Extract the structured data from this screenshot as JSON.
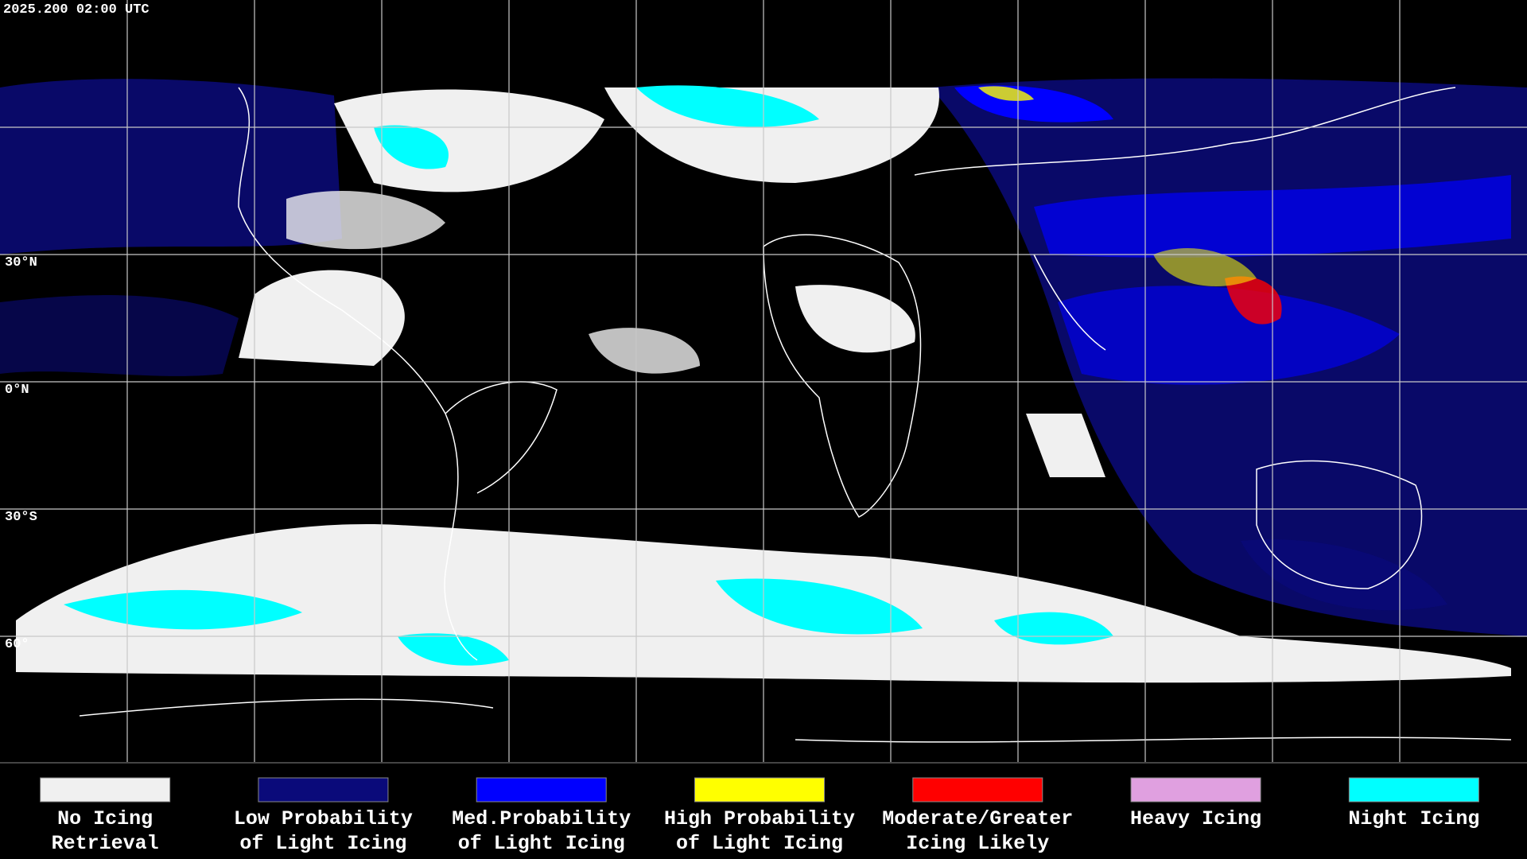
{
  "header": {
    "timestamp": "2025.200 02:00 UTC"
  },
  "grid_labels": [
    "30°N",
    "0°N",
    "30°S",
    "60°"
  ],
  "legend": [
    {
      "lines": [
        "No Icing",
        "Retrieval"
      ],
      "color": "#f0f0f0"
    },
    {
      "lines": [
        "Low Probability",
        "of Light Icing"
      ],
      "color": "#0a0a7a"
    },
    {
      "lines": [
        "Med.Probability",
        "of Light Icing"
      ],
      "color": "#0000ff"
    },
    {
      "lines": [
        "High Probability",
        "of Light Icing"
      ],
      "color": "#ffff00"
    },
    {
      "lines": [
        "Moderate/Greater",
        "Icing Likely"
      ],
      "color": "#ff0000"
    },
    {
      "lines": [
        "Heavy Icing"
      ],
      "color": "#e0a0e0"
    },
    {
      "lines": [
        "Night Icing"
      ],
      "color": "#00ffff"
    }
  ]
}
